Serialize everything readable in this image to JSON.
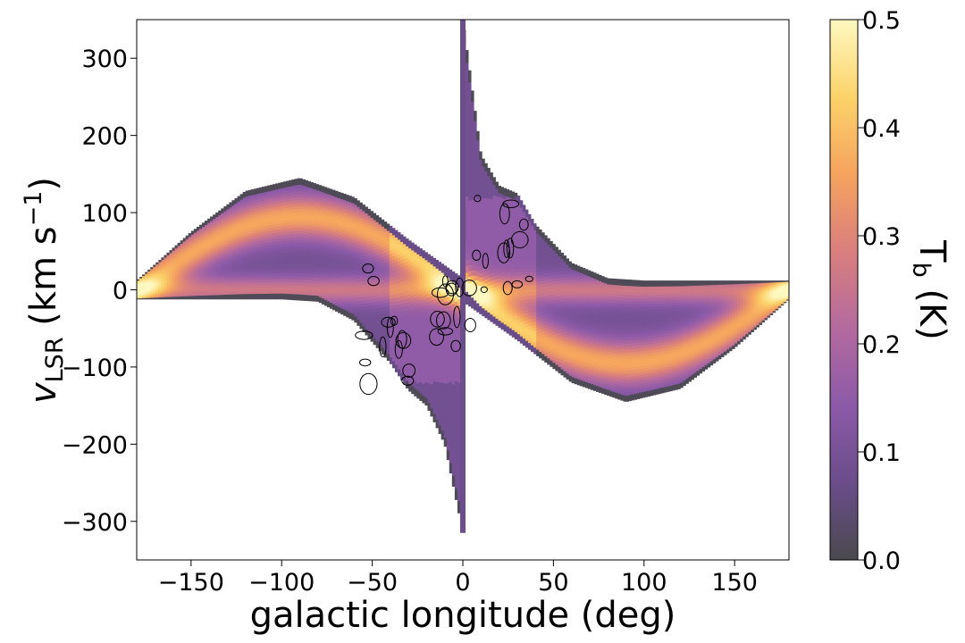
{
  "chart_data": {
    "type": "heatmap",
    "xlabel": "galactic longitude (deg)",
    "ylabel": {
      "main": "v",
      "sub": "LSR",
      "units_prefix": " (km s",
      "units_exp": "−1",
      "units_suffix": ")"
    },
    "colorbar_label": {
      "main": "T",
      "sub": "b",
      "suffix": " (K)"
    },
    "xlim": [
      -180,
      180
    ],
    "ylim": [
      -350,
      350
    ],
    "x_ticks": [
      -150,
      -100,
      -50,
      0,
      50,
      100,
      150
    ],
    "y_ticks": [
      300,
      200,
      100,
      0,
      -100,
      -200,
      -300
    ],
    "x_tick_labels": [
      "−150",
      "−100",
      "−50",
      "0",
      "50",
      "100",
      "150"
    ],
    "y_tick_labels": [
      "300",
      "200",
      "100",
      "0",
      "−100",
      "−200",
      "−300"
    ],
    "colorbar_range": [
      0.0,
      0.5
    ],
    "colorbar_ticks": [
      0.5,
      0.4,
      0.3,
      0.2,
      0.1,
      0.0
    ],
    "colorbar_tick_labels": [
      "0.5",
      "0.4",
      "0.3",
      "0.2",
      "0.1",
      "0.0"
    ],
    "colormap": [
      "#4a4a4e",
      "#6a4d8a",
      "#8c5aa8",
      "#b36a9e",
      "#d97f7d",
      "#f5a35e",
      "#fcd36a",
      "#fdf8c0"
    ],
    "emission_band": {
      "description_units": "vLSR (km/s) envelope vs longitude",
      "longitude": [
        -180,
        -150,
        -120,
        -90,
        -60,
        -30,
        0,
        30,
        60,
        90,
        120,
        150,
        180
      ],
      "upper": [
        12,
        75,
        128,
        145,
        120,
        65,
        15,
        10,
        15,
        12,
        12,
        12,
        12
      ],
      "lower": [
        -12,
        -12,
        -12,
        -12,
        -12,
        -12,
        -15,
        -65,
        -120,
        -145,
        -128,
        -75,
        -12
      ]
    },
    "terminal_velocity": {
      "positive_longitude": {
        "longitude": [
          0,
          10,
          20,
          30,
          40,
          60,
          80,
          100,
          180
        ],
        "velocity": [
          350,
          175,
          135,
          125,
          85,
          35,
          15,
          12,
          12
        ]
      },
      "negative_longitude": {
        "longitude": [
          0,
          -10,
          -20,
          -30,
          -40,
          -60,
          -80,
          -100,
          -180
        ],
        "velocity": [
          -315,
          -200,
          -150,
          -130,
          -95,
          -40,
          -15,
          -12,
          -12
        ]
      }
    },
    "central_stripe": {
      "longitude": 0,
      "vmin": -315,
      "vmax": 350
    },
    "contour_regions": [
      {
        "longitude_range": [
          -60,
          -15
        ],
        "velocity_range": [
          -130,
          30
        ]
      },
      {
        "longitude_range": [
          -15,
          5
        ],
        "velocity_range": [
          -75,
          15
        ]
      },
      {
        "longitude_range": [
          5,
          45
        ],
        "velocity_range": [
          -5,
          135
        ]
      }
    ],
    "grid": false
  }
}
